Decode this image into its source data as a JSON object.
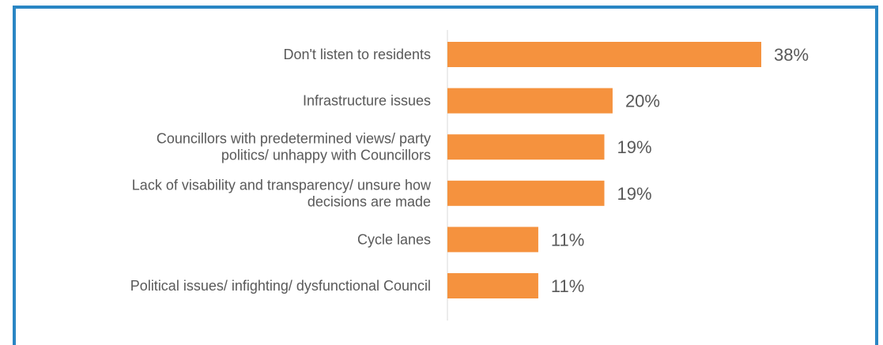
{
  "chart_data": {
    "type": "bar",
    "orientation": "horizontal",
    "categories": [
      [
        "Don't listen to residents"
      ],
      [
        "Infrastructure issues"
      ],
      [
        "Councillors with predetermined views/ party",
        "politics/ unhappy with Councillors"
      ],
      [
        "Lack of visability and transparency/ unsure how",
        "decisions are made"
      ],
      [
        "Cycle lanes"
      ],
      [
        "Political issues/ infighting/ dysfunctional Council"
      ]
    ],
    "values": [
      38,
      20,
      19,
      19,
      11,
      11
    ],
    "value_labels": [
      "38%",
      "20%",
      "19%",
      "19%",
      "11%",
      "11%"
    ],
    "xlim": [
      0,
      40
    ],
    "bar_color": "#f5923e",
    "frame_color": "#2a86c4",
    "grid": false,
    "legend": "none"
  }
}
